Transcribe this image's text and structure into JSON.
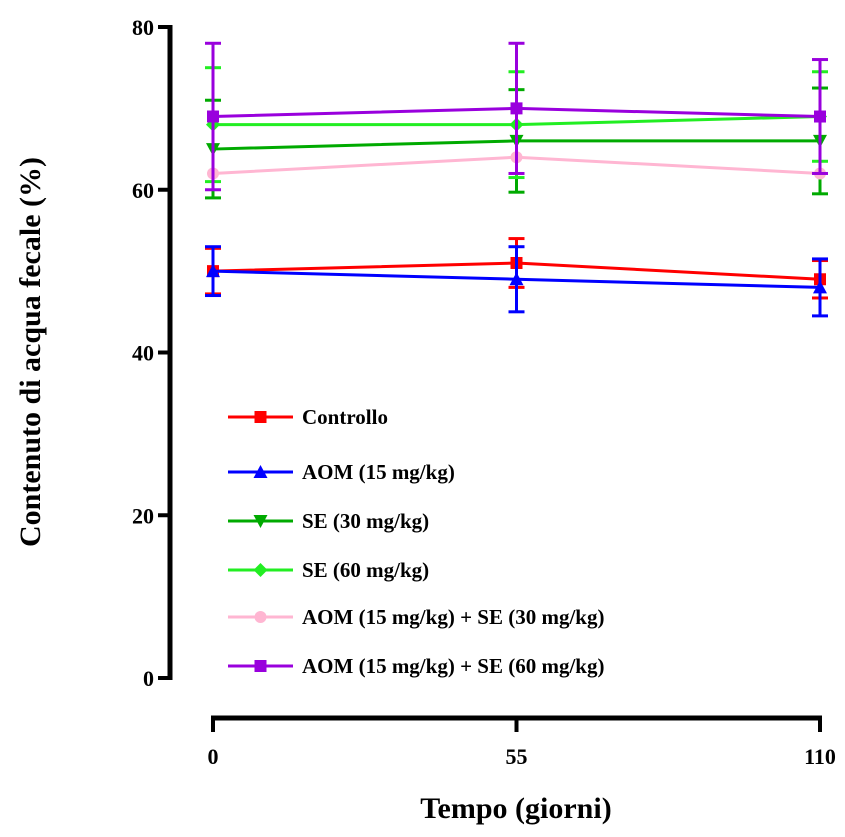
{
  "chart_data": {
    "type": "line",
    "title": "",
    "xlabel": "Tempo (giorni)",
    "ylabel": "Contenuto di acqua fecale (%)",
    "x": [
      0,
      55,
      110
    ],
    "x_ticks": [
      "0",
      "55",
      "110"
    ],
    "y_ticks": [
      "0",
      "20",
      "40",
      "60",
      "80"
    ],
    "ylim": [
      0,
      80
    ],
    "xlim": [
      0,
      110
    ],
    "grid": false,
    "legend_position": "bottom-left",
    "series": [
      {
        "name": "Controllo",
        "color": "#ff0000",
        "marker": "square",
        "values": [
          50,
          51,
          49
        ],
        "errors": [
          2.8,
          3.0,
          2.3
        ]
      },
      {
        "name": "AOM (15 mg/kg)",
        "color": "#0000ff",
        "marker": "triangle-up",
        "values": [
          50,
          49,
          48
        ],
        "errors": [
          3.0,
          4.0,
          3.5
        ]
      },
      {
        "name": "SE (30 mg/kg)",
        "color": "#00aa00",
        "marker": "triangle-down",
        "values": [
          65,
          66,
          66
        ],
        "errors": [
          6.0,
          6.3,
          6.5
        ]
      },
      {
        "name": "SE (60 mg/kg)",
        "color": "#22ee22",
        "marker": "diamond",
        "values": [
          68,
          68,
          69
        ],
        "errors": [
          7.0,
          6.5,
          5.5
        ]
      },
      {
        "name": "AOM (15 mg/kg) + SE (30 mg/kg)",
        "color": "#ffb6d2",
        "marker": "circle",
        "values": [
          62,
          64,
          62
        ],
        "errors": [
          0,
          0,
          0
        ]
      },
      {
        "name": "AOM (15 mg/kg) + SE (60 mg/kg)",
        "color": "#9900dd",
        "marker": "square",
        "values": [
          69,
          70,
          69
        ],
        "errors": [
          9.0,
          8.0,
          7.0
        ]
      }
    ]
  }
}
